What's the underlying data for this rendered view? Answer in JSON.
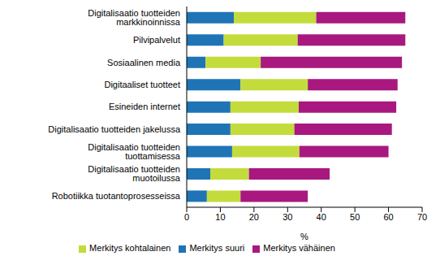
{
  "chart_data": {
    "type": "bar",
    "orientation": "horizontal",
    "stacked": true,
    "grid": false,
    "legend": "bottom",
    "xlabel": "%",
    "xlim": [
      0,
      70
    ],
    "xticks": [
      0,
      10,
      20,
      30,
      40,
      50,
      60,
      70
    ],
    "categories": [
      "Digitalisaatio tuotteiden markkinoinnissa",
      "Pilvipalvelut",
      "Sosiaalinen media",
      "Digitaaliset tuotteet",
      "Esineiden internet",
      "Digitalisaatio tuotteiden jakelussa",
      "Digitalisaatio tuotteiden tuottamisessa",
      "Digitalisaatio tuotteiden muotoilussa",
      "Robotiikka tuotantoprosesseissa"
    ],
    "series": [
      {
        "name": "Merkitys suuri",
        "color": "#1f74b5",
        "values": [
          14,
          11,
          5.6,
          16,
          13,
          13,
          13.5,
          7,
          6
        ]
      },
      {
        "name": "Merkitys kohtalainen",
        "color": "#c3dc3c",
        "values": [
          24.5,
          22,
          16.4,
          20,
          20.3,
          19,
          20,
          11.5,
          10
        ]
      },
      {
        "name": "Merkitys vähäinen",
        "color": "#a8187f",
        "values": [
          26.5,
          32,
          42,
          26.7,
          29,
          29,
          26.5,
          24,
          20
        ]
      }
    ]
  }
}
